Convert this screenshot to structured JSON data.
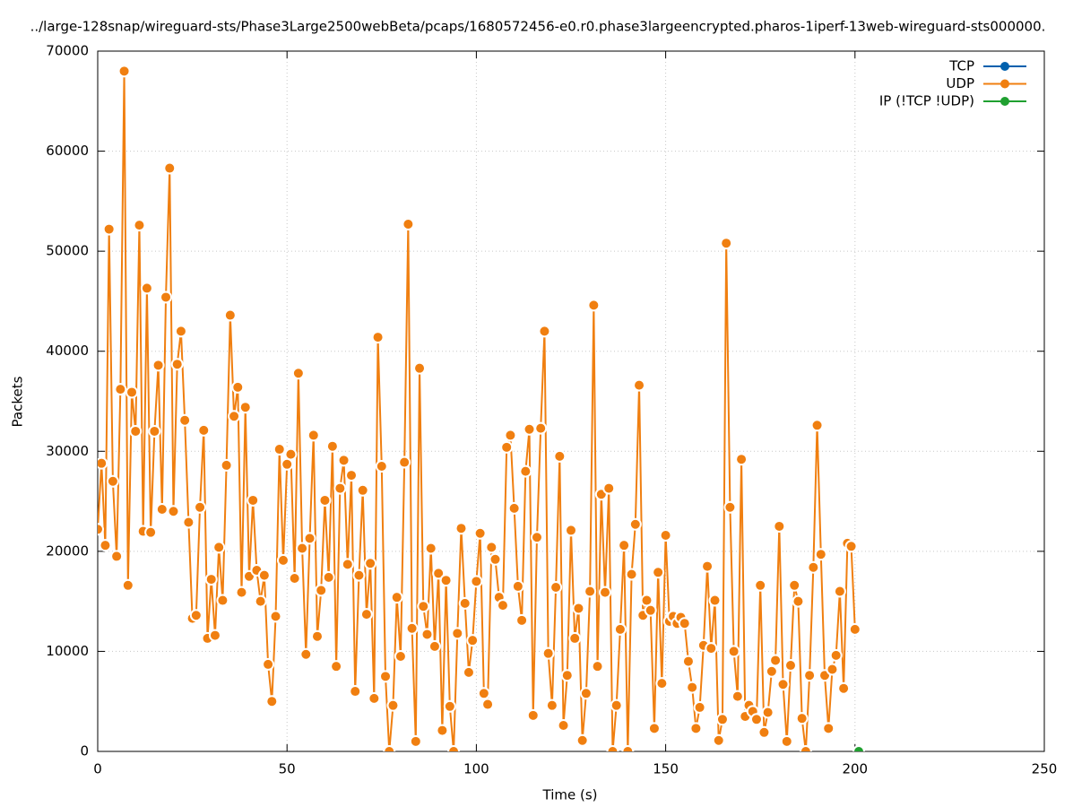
{
  "chart_data": {
    "type": "line",
    "title": "../large-128snap/wireguard-sts/Phase3Large2500webBeta/pcaps/1680572456-e0.r0.phase3largeencrypted.pharos-1iperf-13web-wireguard-sts000000.",
    "xlabel": "Time (s)",
    "ylabel": "Packets",
    "xlim": [
      0,
      250
    ],
    "xticks": [
      0,
      50,
      100,
      150,
      200,
      250
    ],
    "ylim": [
      0,
      70000
    ],
    "yticks": [
      0,
      10000,
      20000,
      30000,
      40000,
      50000,
      60000,
      70000
    ],
    "grid": true,
    "legend": "top-right",
    "series": [
      {
        "name": "TCP",
        "color": "#0060ad",
        "x": [],
        "values": []
      },
      {
        "name": "UDP",
        "color": "#f07f10",
        "x": [
          0,
          1,
          2,
          3,
          4,
          5,
          6,
          7,
          8,
          9,
          10,
          11,
          12,
          13,
          14,
          15,
          16,
          17,
          18,
          19,
          20,
          21,
          22,
          23,
          24,
          25,
          26,
          27,
          28,
          29,
          30,
          31,
          32,
          33,
          34,
          35,
          36,
          37,
          38,
          39,
          40,
          41,
          42,
          43,
          44,
          45,
          46,
          47,
          48,
          49,
          50,
          51,
          52,
          53,
          54,
          55,
          56,
          57,
          58,
          59,
          60,
          61,
          62,
          63,
          64,
          65,
          66,
          67,
          68,
          69,
          70,
          71,
          72,
          73,
          74,
          75,
          76,
          77,
          78,
          79,
          80,
          81,
          82,
          83,
          84,
          85,
          86,
          87,
          88,
          89,
          90,
          91,
          92,
          93,
          94,
          95,
          96,
          97,
          98,
          99,
          100,
          101,
          102,
          103,
          104,
          105,
          106,
          107,
          108,
          109,
          110,
          111,
          112,
          113,
          114,
          115,
          116,
          117,
          118,
          119,
          120,
          121,
          122,
          123,
          124,
          125,
          126,
          127,
          128,
          129,
          130,
          131,
          132,
          133,
          134,
          135,
          136,
          137,
          138,
          139,
          140,
          141,
          142,
          143,
          144,
          145,
          146,
          147,
          148,
          149,
          150,
          151,
          152,
          153,
          154,
          155,
          156,
          157,
          158,
          159,
          160,
          161,
          162,
          163,
          164,
          165,
          166,
          167,
          168,
          169,
          170,
          171,
          172,
          173,
          174,
          175,
          176,
          177,
          178,
          179,
          180,
          181,
          182,
          183,
          184,
          185,
          186,
          187,
          188,
          189,
          190,
          191,
          192,
          193,
          194,
          195,
          196,
          197,
          198,
          199,
          200
        ],
        "values": [
          22200,
          28800,
          20600,
          52200,
          27000,
          19500,
          36200,
          68000,
          16600,
          35900,
          32000,
          52600,
          22000,
          46300,
          21900,
          32000,
          38600,
          24200,
          45400,
          58300,
          24000,
          38700,
          42000,
          33100,
          22900,
          13300,
          13600,
          24400,
          32100,
          11300,
          17200,
          11600,
          20400,
          15100,
          28600,
          43600,
          33500,
          36400,
          15900,
          34400,
          17500,
          25100,
          18100,
          15000,
          17600,
          8700,
          5000,
          13500,
          30200,
          19100,
          28700,
          29700,
          17300,
          37800,
          20300,
          9700,
          21300,
          31600,
          11500,
          16100,
          25100,
          17400,
          30500,
          8500,
          26300,
          29100,
          18700,
          27600,
          6000,
          17600,
          26100,
          13700,
          18800,
          5300,
          41400,
          28500,
          7500,
          0,
          4600,
          15400,
          9500,
          28900,
          52700,
          12300,
          1000,
          38300,
          14500,
          11700,
          20300,
          10500,
          17800,
          2100,
          17100,
          4500,
          0,
          11800,
          22300,
          14800,
          7900,
          11100,
          17000,
          21800,
          5800,
          4700,
          20400,
          19200,
          15400,
          14600,
          30400,
          31600,
          24300,
          16500,
          13100,
          28000,
          32200,
          3600,
          21400,
          32300,
          42000,
          9800,
          4600,
          16400,
          29500,
          2600,
          7600,
          22100,
          11300,
          14300,
          1100,
          5800,
          16000,
          44600,
          8500,
          25700,
          15900,
          26300,
          0,
          4600,
          12200,
          20600,
          0,
          17700,
          22700,
          36600,
          13600,
          15100,
          14100,
          2300,
          17900,
          6800,
          21600,
          13000,
          13500,
          12800,
          13400,
          12800,
          9000,
          6400,
          2300,
          4400,
          10600,
          18500,
          10300,
          15100,
          1100,
          3200,
          50800,
          24400,
          10000,
          5500,
          29200,
          3500,
          4600,
          4000,
          3200,
          16600,
          1900,
          3900,
          8000,
          9100,
          22500,
          6700,
          1000,
          8600,
          16600,
          15000,
          3300,
          0,
          7600,
          18400,
          32600,
          19700,
          7600,
          2300,
          8200,
          9600,
          16000,
          6300,
          20800,
          20500,
          12200
        ]
      },
      {
        "name": "IP (!TCP  !UDP)",
        "color": "#20a030",
        "x": [
          201
        ],
        "values": [
          0
        ]
      }
    ]
  }
}
